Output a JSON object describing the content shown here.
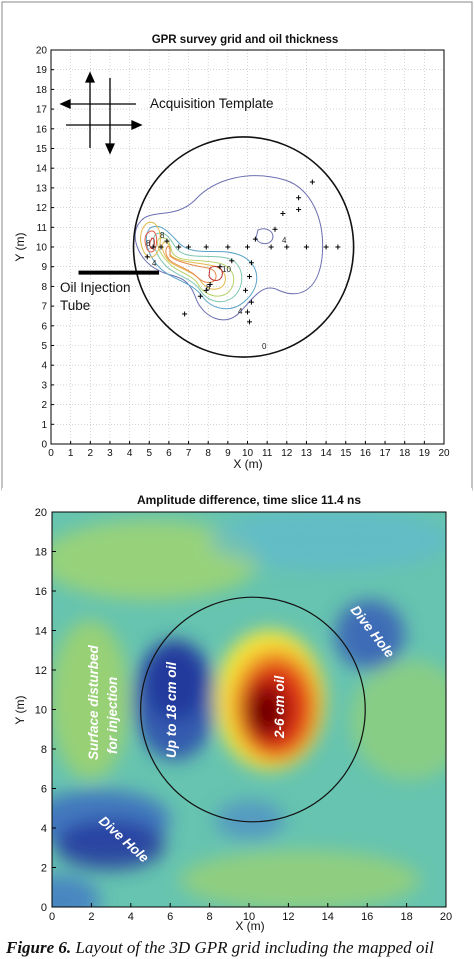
{
  "chart_data": [
    {
      "type": "scatter",
      "title": "GPR survey grid and oil thickness",
      "xlabel": "X (m)",
      "ylabel": "Y (m)",
      "xlim": [
        0,
        20
      ],
      "ylim": [
        0,
        20
      ],
      "xticks": [
        "0",
        "1",
        "2",
        "3",
        "4",
        "5",
        "6",
        "7",
        "8",
        "9",
        "10",
        "11",
        "12",
        "13",
        "14",
        "15",
        "16",
        "17",
        "18",
        "19",
        "20"
      ],
      "yticks": [
        "0",
        "1",
        "2",
        "3",
        "4",
        "5",
        "6",
        "7",
        "8",
        "9",
        "10",
        "11",
        "12",
        "13",
        "14",
        "15",
        "16",
        "17",
        "18",
        "19",
        "20"
      ],
      "grid": true,
      "annotations": {
        "acquisition_template": "Acquisition Template",
        "oil_injection": "Oil Injection",
        "tube": "Tube"
      },
      "tank_circle": {
        "center": [
          9.8,
          10.0
        ],
        "radius": 5.6
      },
      "injection_tube": {
        "x": [
          1.4,
          5.5
        ],
        "y": 8.7
      },
      "survey_points": [
        [
          5.2,
          10.0
        ],
        [
          5.6,
          10.0
        ],
        [
          5.9,
          10.3
        ],
        [
          6.5,
          10.0
        ],
        [
          7.0,
          10.0
        ],
        [
          7.9,
          10.0
        ],
        [
          9.0,
          10.0
        ],
        [
          10.0,
          10.0
        ],
        [
          10.4,
          10.4
        ],
        [
          11.2,
          10.0
        ],
        [
          12.0,
          10.0
        ],
        [
          13.0,
          10.0
        ],
        [
          14.0,
          10.0
        ],
        [
          14.6,
          10.0
        ],
        [
          12.6,
          12.5
        ],
        [
          11.8,
          11.7
        ],
        [
          11.4,
          10.9
        ],
        [
          13.3,
          13.3
        ],
        [
          12.6,
          11.9
        ],
        [
          10.2,
          9.2
        ],
        [
          10.1,
          8.5
        ],
        [
          9.9,
          7.8
        ],
        [
          10.2,
          7.2
        ],
        [
          10.0,
          6.7
        ],
        [
          10.1,
          6.2
        ],
        [
          9.2,
          9.3
        ],
        [
          8.6,
          9.0
        ],
        [
          7.6,
          7.5
        ],
        [
          7.9,
          7.8
        ],
        [
          6.8,
          6.6
        ],
        [
          8.1,
          8.1
        ],
        [
          4.9,
          9.5
        ]
      ],
      "contour_labels": [
        "8",
        "10",
        "8",
        "4",
        "4",
        "0",
        "8",
        "4"
      ]
    },
    {
      "type": "heatmap",
      "title": "Amplitude difference, time slice 11.4 ns",
      "xlabel": "X (m)",
      "ylabel": "Y (m)",
      "xlim": [
        0,
        20
      ],
      "ylim": [
        0,
        20
      ],
      "xticks": [
        "0",
        "2",
        "4",
        "6",
        "8",
        "10",
        "12",
        "14",
        "16",
        "18",
        "20"
      ],
      "yticks": [
        "0",
        "2",
        "4",
        "6",
        "8",
        "10",
        "12",
        "14",
        "16",
        "18",
        "20"
      ],
      "annotations": {
        "surface_disturbed": "Surface disturbed",
        "for_injection": "for injection",
        "up_to_18": "Up to 18 cm oil",
        "two_six": "2-6 cm oil",
        "dive_hole_right": "Dive Hole",
        "dive_hole_left": "Dive Hole"
      },
      "tank_circle": {
        "center": [
          10.2,
          10.0
        ],
        "radius": 5.7
      }
    }
  ],
  "caption": {
    "label": "Figure 6.",
    "text": "Layout of the 3D GPR grid including the mapped oil"
  }
}
